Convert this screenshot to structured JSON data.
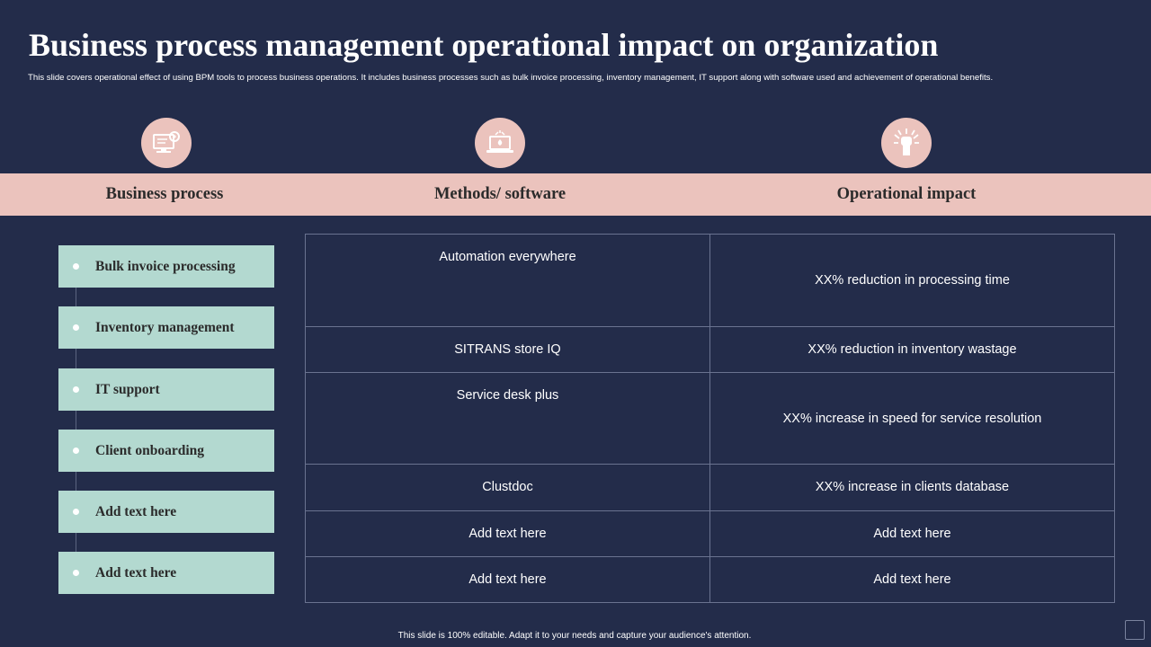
{
  "title": "Business process management operational impact on organization",
  "subtitle": "This slide covers operational effect of using BPM tools to process business operations. It includes business processes such as bulk invoice processing, inventory management, IT  support along with software used and achievement of operational benefits.",
  "icons": [
    "computer-settings-icon",
    "laptop-cloud-icon",
    "raised-fist-icon"
  ],
  "headers": {
    "business_process": "Business process",
    "methods_software": "Methods/ software",
    "operational_impact": "Operational impact"
  },
  "processes": [
    "Bulk invoice processing",
    "Inventory management",
    "IT support",
    "Client onboarding",
    "Add text here",
    "Add text here"
  ],
  "rows": [
    {
      "method": "Automation everywhere",
      "impact": "XX%  reduction in processing time"
    },
    {
      "method": "SITRANS  store IQ",
      "impact": "XX%  reduction in inventory  wastage"
    },
    {
      "method": "Service desk plus",
      "impact": "XX%  increase in speed for service resolution"
    },
    {
      "method": "Clustdoc",
      "impact": "XX%  increase in clients database"
    },
    {
      "method": "Add text here",
      "impact": "Add text here"
    },
    {
      "method": "Add text here",
      "impact": "Add text here"
    }
  ],
  "footer": "This slide is 100% editable.  Adapt it to your needs and capture your audience's attention.",
  "colors": {
    "background": "#232c4a",
    "accent_pink": "#ebc3bd",
    "process_box": "#b3d9d0",
    "grid_line": "#6a7390"
  }
}
